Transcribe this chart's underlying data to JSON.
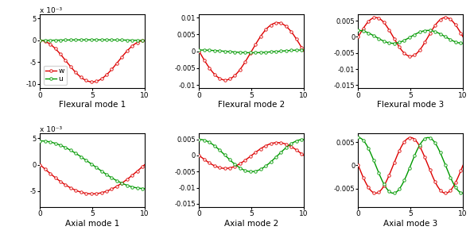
{
  "plots": [
    {
      "title": "Flexural mode 1",
      "ylim": [
        -0.011,
        0.006
      ],
      "yticks": [
        -0.01,
        -0.005,
        0,
        0.005
      ],
      "yticklabels": [
        "-10",
        "-5",
        "0",
        "5"
      ],
      "yscale_label": "x 10⁻³",
      "w": {
        "type": "neg_sin2",
        "amp": 0.0095,
        "freq": 1
      },
      "u": {
        "type": "sin",
        "amp": 0.00015,
        "freq": 1,
        "phase": 0
      }
    },
    {
      "title": "Flexural mode 2",
      "ylim": [
        -0.011,
        0.011
      ],
      "yticks": [
        -0.01,
        -0.005,
        0,
        0.005,
        0.01
      ],
      "yticklabels": [
        "-0.01",
        "-0.005",
        "0",
        "0.005",
        "0.01"
      ],
      "yscale_label": null,
      "w": {
        "type": "sin",
        "amp": -0.0085,
        "freq": 2,
        "phase": 0.0
      },
      "u": {
        "type": "sin",
        "amp": 0.0004,
        "freq": 2,
        "phase": 1.5707963
      }
    },
    {
      "title": "Flexural mode 3",
      "ylim": [
        -0.016,
        0.007
      ],
      "yticks": [
        -0.015,
        -0.01,
        -0.005,
        0,
        0.005
      ],
      "yticklabels": [
        "-0.015",
        "-0.01",
        "-0.005",
        "0",
        "0.005"
      ],
      "yscale_label": null,
      "w": {
        "type": "sin",
        "amp": 0.006,
        "freq": 3,
        "phase": 0.0
      },
      "u": {
        "type": "sin",
        "amp": 0.002,
        "freq": 3,
        "phase": 1.5707963
      }
    },
    {
      "title": "Axial mode 1",
      "ylim": [
        -0.008,
        0.006
      ],
      "yticks": [
        -0.005,
        0,
        0.005
      ],
      "yticklabels": [
        "-5",
        "0",
        "5"
      ],
      "yscale_label": "x 10⁻³",
      "w": {
        "type": "neg_sin2_asym",
        "amp": 0.0055,
        "freq": 1
      },
      "u": {
        "type": "cos",
        "amp": 0.0045,
        "freq": 1,
        "phase": 0
      }
    },
    {
      "title": "Axial mode 2",
      "ylim": [
        -0.016,
        0.007
      ],
      "yticks": [
        -0.015,
        -0.01,
        -0.005,
        0,
        0.005
      ],
      "yticklabels": [
        "-0.015",
        "-0.01",
        "-0.005",
        "0",
        "0.005"
      ],
      "yscale_label": null,
      "w": {
        "type": "sin",
        "amp": -0.004,
        "freq": 2,
        "phase": 0.0
      },
      "u": {
        "type": "sin",
        "amp": 0.005,
        "freq": 2,
        "phase": 1.5707963
      }
    },
    {
      "title": "Axial mode 3",
      "ylim": [
        -0.009,
        0.007
      ],
      "yticks": [
        -0.005,
        0,
        0.005
      ],
      "yticklabels": [
        "-0.005",
        "0",
        "0.005"
      ],
      "yscale_label": null,
      "w": {
        "type": "sin",
        "amp": -0.006,
        "freq": 3,
        "phase": 0.0
      },
      "u": {
        "type": "sin",
        "amp": 0.006,
        "freq": 3,
        "phase": 1.5707963
      }
    }
  ],
  "red_color": "#dd0000",
  "green_color": "#009900",
  "marker_every": 25,
  "marker_size": 2.5,
  "linewidth": 1.0
}
